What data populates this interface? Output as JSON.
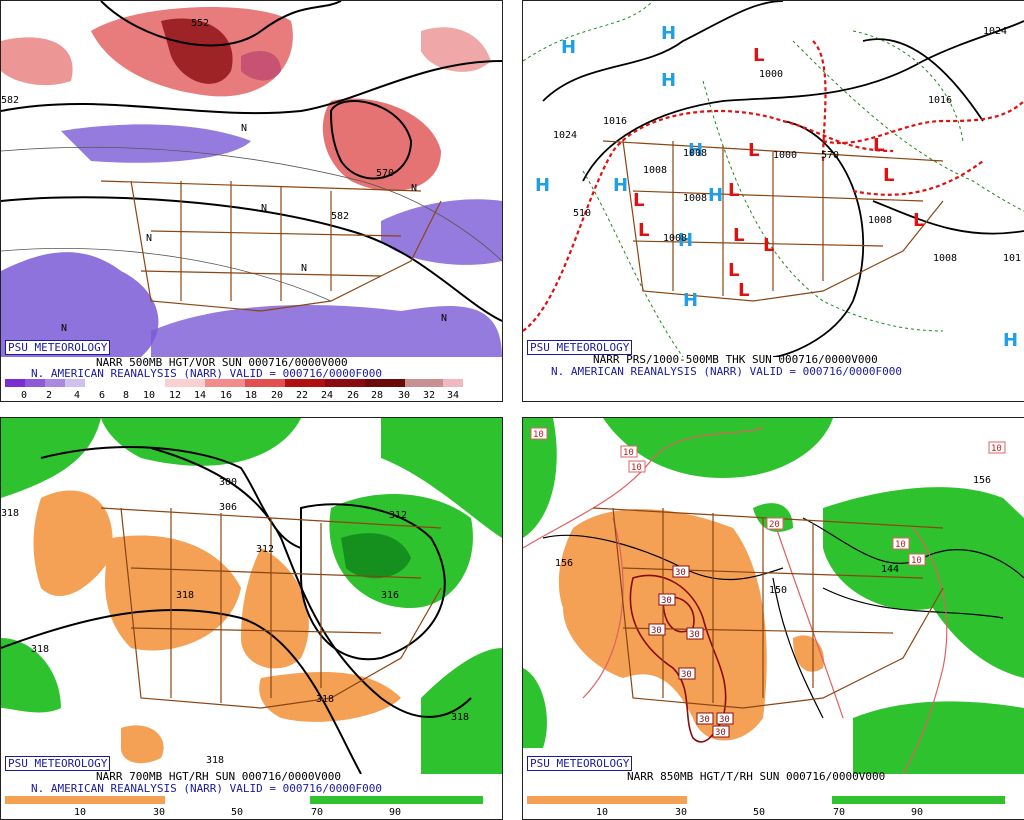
{
  "credit": "PSU METEOROLOGY",
  "colors": {
    "vort_purple": "#7b5ad6",
    "vort_red": "#e05050",
    "vort_dark": "#8a0c10",
    "rh_dry": "#f4a055",
    "rh_wet": "#2ec22e",
    "rh_dark": "#0c7a1a",
    "border": "#8b4513",
    "high_blue": "#1ea0e8",
    "low_red": "#e01010"
  },
  "panels": [
    {
      "id": "vort500",
      "caption1": "NARR 500MB HGT/VOR SUN 000716/0000V000",
      "caption2": "N. AMERICAN REANALYSIS (NARR) VALID = 000716/0000F000",
      "colorbar_ticks": [
        "0",
        "2",
        "4",
        "6",
        "8",
        "10",
        "12",
        "14",
        "16",
        "18",
        "20",
        "22",
        "24",
        "26",
        "28",
        "30",
        "32",
        "34"
      ],
      "contour_labels": [
        "552",
        "582",
        "570",
        "582",
        "N",
        "N",
        "N",
        "N",
        "N",
        "N",
        "N"
      ]
    },
    {
      "id": "mslp",
      "caption1": "NARR PRS/1000-500MB THK SUN 000716/0000V000",
      "caption2": "N. AMERICAN REANALYSIS (NARR) VALID = 000716/0000F000",
      "contour_labels": [
        "1000",
        "1024",
        "1016",
        "1008",
        "1008",
        "1000",
        "570",
        "510",
        "1008",
        "1008",
        "1024",
        "1016",
        "1008",
        "1008",
        "101"
      ],
      "high": "H",
      "low": "L"
    },
    {
      "id": "rh700",
      "caption1": "NARR 700MB HGT/RH SUN 000716/0000V000",
      "caption2": "N. AMERICAN REANALYSIS (NARR) VALID = 000716/0000F000",
      "colorbar_ticks": [
        "10",
        "30",
        "50",
        "70",
        "90"
      ],
      "contour_labels": [
        "300",
        "306",
        "312",
        "318",
        "318",
        "318",
        "318",
        "316",
        "318",
        "318",
        "312"
      ]
    },
    {
      "id": "rh850",
      "caption1": "NARR 850MB HGT/T/RH SUN 000716/0000V000",
      "colorbar_ticks": [
        "10",
        "30",
        "50",
        "70",
        "90"
      ],
      "contour_labels": [
        "156",
        "150",
        "144",
        "156"
      ],
      "temp_labels": [
        "10",
        "10",
        "10",
        "20",
        "30",
        "30",
        "30",
        "30",
        "30",
        "30",
        "30",
        "30",
        "10",
        "10",
        "10"
      ]
    }
  ]
}
